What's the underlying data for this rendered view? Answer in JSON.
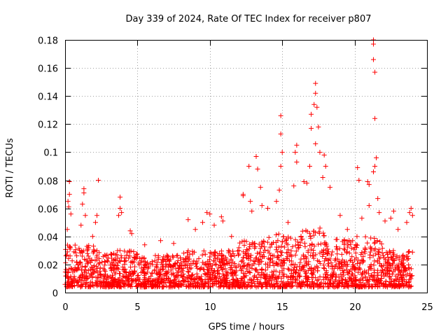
{
  "chart_data": {
    "type": "scatter",
    "title": "Day 339 of 2024, Rate Of TEC Index for receiver p807",
    "xlabel": "GPS time / hours",
    "ylabel": "ROTI / TECUs",
    "xlim": [
      0,
      25
    ],
    "ylim": [
      0,
      0.18
    ],
    "x_ticks": [
      "0",
      "5",
      "10",
      "15",
      "20",
      "25"
    ],
    "y_ticks": [
      "0",
      "0.02",
      "0.04",
      "0.06",
      "0.08",
      "0.1",
      "0.12",
      "0.14",
      "0.16",
      "0.18"
    ],
    "grid": true,
    "marker": "plus",
    "colors": {
      "series": "#ff0000",
      "grid": "#a0a0a0"
    },
    "series": [
      {
        "name": "p807",
        "points": [
          [
            0.3,
            0.079
          ],
          [
            0.3,
            0.07
          ],
          [
            0.2,
            0.065
          ],
          [
            0.25,
            0.061
          ],
          [
            0.4,
            0.056
          ],
          [
            0.15,
            0.045
          ],
          [
            1.3,
            0.074
          ],
          [
            1.3,
            0.071
          ],
          [
            1.2,
            0.063
          ],
          [
            1.4,
            0.055
          ],
          [
            1.1,
            0.048
          ],
          [
            2.3,
            0.08
          ],
          [
            2.2,
            0.055
          ],
          [
            2.1,
            0.05
          ],
          [
            1.9,
            0.04
          ],
          [
            3.8,
            0.068
          ],
          [
            3.8,
            0.06
          ],
          [
            3.9,
            0.057
          ],
          [
            3.7,
            0.055
          ],
          [
            4.5,
            0.044
          ],
          [
            4.6,
            0.042
          ],
          [
            5.5,
            0.034
          ],
          [
            6.6,
            0.037
          ],
          [
            7.5,
            0.035
          ],
          [
            8.5,
            0.052
          ],
          [
            9.0,
            0.045
          ],
          [
            9.5,
            0.05
          ],
          [
            9.8,
            0.057
          ],
          [
            10.0,
            0.056
          ],
          [
            10.3,
            0.048
          ],
          [
            10.8,
            0.054
          ],
          [
            10.9,
            0.051
          ],
          [
            11.5,
            0.04
          ],
          [
            12.3,
            0.07
          ],
          [
            12.3,
            0.069
          ],
          [
            12.8,
            0.065
          ],
          [
            12.9,
            0.058
          ],
          [
            12.7,
            0.09
          ],
          [
            13.2,
            0.097
          ],
          [
            13.3,
            0.088
          ],
          [
            13.5,
            0.075
          ],
          [
            13.6,
            0.062
          ],
          [
            14.0,
            0.06
          ],
          [
            14.6,
            0.065
          ],
          [
            14.8,
            0.073
          ],
          [
            14.9,
            0.126
          ],
          [
            14.9,
            0.113
          ],
          [
            15.0,
            0.1
          ],
          [
            14.9,
            0.09
          ],
          [
            15.4,
            0.05
          ],
          [
            15.9,
            0.1
          ],
          [
            16.0,
            0.105
          ],
          [
            16.0,
            0.093
          ],
          [
            15.8,
            0.076
          ],
          [
            16.5,
            0.079
          ],
          [
            16.7,
            0.078
          ],
          [
            17.0,
            0.127
          ],
          [
            17.0,
            0.117
          ],
          [
            16.9,
            0.09
          ],
          [
            17.3,
            0.149
          ],
          [
            17.3,
            0.142
          ],
          [
            17.2,
            0.134
          ],
          [
            17.4,
            0.132
          ],
          [
            17.5,
            0.118
          ],
          [
            17.3,
            0.106
          ],
          [
            17.6,
            0.1
          ],
          [
            17.9,
            0.098
          ],
          [
            18.0,
            0.09
          ],
          [
            17.8,
            0.082
          ],
          [
            18.3,
            0.075
          ],
          [
            19.0,
            0.055
          ],
          [
            19.5,
            0.045
          ],
          [
            20.2,
            0.089
          ],
          [
            20.3,
            0.08
          ],
          [
            20.5,
            0.053
          ],
          [
            20.9,
            0.079
          ],
          [
            21.0,
            0.077
          ],
          [
            21.0,
            0.062
          ],
          [
            21.3,
            0.18
          ],
          [
            21.3,
            0.177
          ],
          [
            21.3,
            0.166
          ],
          [
            21.4,
            0.157
          ],
          [
            21.4,
            0.124
          ],
          [
            21.5,
            0.096
          ],
          [
            21.4,
            0.09
          ],
          [
            21.3,
            0.086
          ],
          [
            21.6,
            0.067
          ],
          [
            21.7,
            0.057
          ],
          [
            22.1,
            0.051
          ],
          [
            22.5,
            0.053
          ],
          [
            22.7,
            0.058
          ],
          [
            23.0,
            0.045
          ],
          [
            23.6,
            0.05
          ],
          [
            23.8,
            0.057
          ],
          [
            23.9,
            0.06
          ],
          [
            24.0,
            0.055
          ]
        ]
      }
    ],
    "band": {
      "note": "dense baseline of points between about 0.004 and 0.035 TECU over 0-24 h",
      "segments": [
        {
          "x": [
            0,
            2
          ],
          "top": 0.034
        },
        {
          "x": [
            2,
            5
          ],
          "top": 0.03
        },
        {
          "x": [
            5,
            8
          ],
          "top": 0.027
        },
        {
          "x": [
            8,
            12
          ],
          "top": 0.03
        },
        {
          "x": [
            12,
            14
          ],
          "top": 0.037
        },
        {
          "x": [
            14,
            15
          ],
          "top": 0.042
        },
        {
          "x": [
            15,
            16
          ],
          "top": 0.04
        },
        {
          "x": [
            16,
            18
          ],
          "top": 0.046
        },
        {
          "x": [
            18,
            20
          ],
          "top": 0.038
        },
        {
          "x": [
            20,
            22
          ],
          "top": 0.04
        },
        {
          "x": [
            22,
            24
          ],
          "top": 0.03
        }
      ],
      "bottom": 0.004
    }
  }
}
